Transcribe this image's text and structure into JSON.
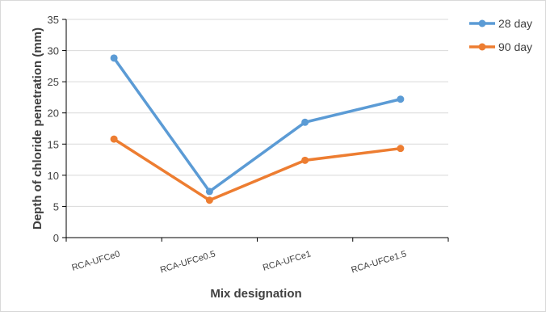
{
  "chart_data": {
    "type": "line",
    "title": "",
    "xlabel": "Mix designation",
    "ylabel": "Depth of chloride penetration (mm)",
    "categories": [
      "RCA-UFCe0",
      "RCA-UFCe0.5",
      "RCA-UFCe1",
      "RCA-UFCe1.5"
    ],
    "ylim": [
      0,
      35
    ],
    "yticks": [
      0,
      5,
      10,
      15,
      20,
      25,
      30,
      35
    ],
    "y_tick_labels": [
      "0",
      "5",
      "10",
      "15",
      "20",
      "25",
      "30",
      "35"
    ],
    "grid": true,
    "legend_position": "top-right",
    "series": [
      {
        "name": "28 day",
        "color": "#5B9BD5",
        "values": [
          28.8,
          7.4,
          18.5,
          22.2
        ]
      },
      {
        "name": "90 day",
        "color": "#ED7D31",
        "values": [
          15.8,
          6.0,
          12.4,
          14.3
        ]
      }
    ]
  },
  "colors": {
    "grid": "#D9D9D9",
    "axis": "#000000",
    "frame_border": "#D9D9D9",
    "text": "#404040"
  }
}
